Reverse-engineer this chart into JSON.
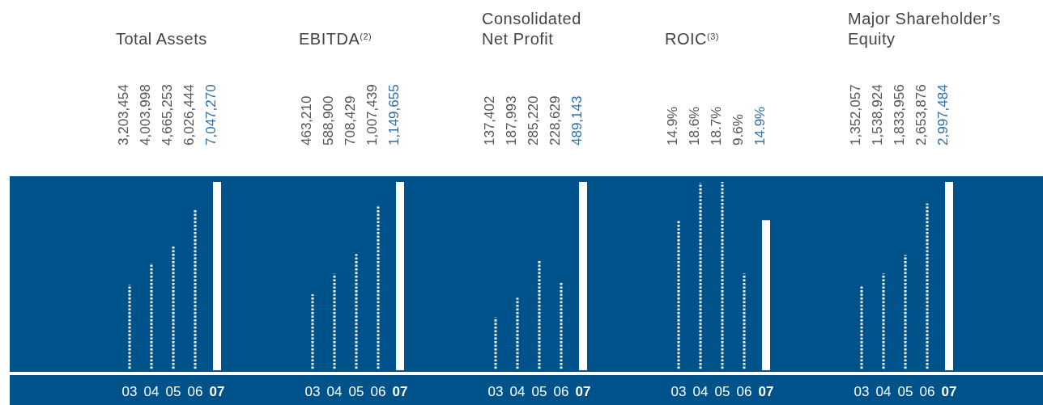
{
  "chart_data": [
    {
      "type": "bar",
      "title": "Total Assets",
      "categories": [
        "03",
        "04",
        "05",
        "06",
        "07"
      ],
      "color": "#ffffff",
      "values": [
        3203454,
        4003998,
        4665253,
        6026444,
        7047270
      ],
      "value_labels": [
        "3,203,454",
        "4,003,998",
        "4,665,253",
        "6,026,444",
        "7,047,270"
      ]
    },
    {
      "type": "bar",
      "title": "EBITDA$^{(2)}$",
      "categories": [
        "03",
        "04",
        "05",
        "06",
        "07"
      ],
      "color": "#ffffff",
      "values": [
        463210,
        588900,
        708429,
        1007439,
        1149655
      ],
      "value_labels": [
        "463,210",
        "588,900",
        "708,429",
        "1,007,439",
        "1,149,655"
      ]
    },
    {
      "type": "bar",
      "title": "Consolidated\nNet Profit",
      "categories": [
        "03",
        "04",
        "05",
        "06",
        "07"
      ],
      "color": "#ffffff",
      "values": [
        137402,
        187993,
        285220,
        228629,
        489143
      ],
      "value_labels": [
        "137,402",
        "187,993",
        "285,220",
        "228,629",
        "489,143"
      ]
    },
    {
      "type": "bar",
      "title": "ROIC$^{(3)}$",
      "categories": [
        "03",
        "04",
        "05",
        "06",
        "07"
      ],
      "color": "#ffffff",
      "values": [
        14.9,
        18.6,
        18.7,
        9.6,
        14.9
      ],
      "value_labels": [
        "14.9%",
        "18.6%",
        "18.7%",
        "9.6%",
        "14.9%"
      ]
    },
    {
      "type": "bar",
      "title": "Major Shareholder’s\nEquity",
      "categories": [
        "03",
        "04",
        "05",
        "06",
        "07"
      ],
      "color": "#ffffff",
      "values": [
        1352057,
        1538924,
        1833956,
        2653876,
        2997484
      ],
      "value_labels": [
        "1,352,057",
        "1,538,924",
        "1,833,956",
        "2,653,876",
        "2,997,484"
      ]
    }
  ]
}
